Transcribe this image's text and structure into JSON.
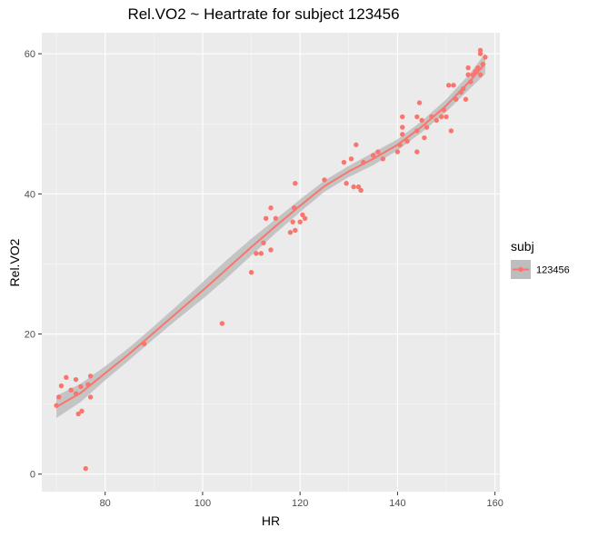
{
  "chart_data": {
    "type": "scatter",
    "title": "Rel.VO2 ~ Heartrate for subject 123456",
    "xlabel": "HR",
    "ylabel": "Rel.VO2",
    "xlim": [
      67,
      161
    ],
    "ylim": [
      -2.5,
      63
    ],
    "x_ticks": [
      80,
      100,
      120,
      140,
      160
    ],
    "y_ticks": [
      0,
      20,
      40,
      60
    ],
    "x_minor_ticks": [
      70,
      90,
      110,
      130,
      150
    ],
    "y_minor_ticks": [
      10,
      30,
      50
    ],
    "grid": true,
    "legend_position": "right",
    "legend": {
      "title": "subj",
      "entries": [
        {
          "label": "123456",
          "color": "#F8766D"
        }
      ]
    },
    "colors": {
      "point": "#F8766D",
      "smooth_line": "#F8766D",
      "ribbon": "#BDBDBD",
      "panel": "#EBEBEB",
      "grid": "#FFFFFF"
    },
    "series": [
      {
        "name": "123456",
        "points": [
          [
            70,
            9.8
          ],
          [
            70.5,
            11
          ],
          [
            71,
            12.6
          ],
          [
            72,
            13.8
          ],
          [
            73,
            12
          ],
          [
            74,
            13.5
          ],
          [
            74,
            11.5
          ],
          [
            74.5,
            8.6
          ],
          [
            75,
            12.5
          ],
          [
            75.2,
            9
          ],
          [
            76,
            0.8
          ],
          [
            76.5,
            12.8
          ],
          [
            77,
            11
          ],
          [
            77,
            14
          ],
          [
            88,
            18.6
          ],
          [
            104,
            21.5
          ],
          [
            110,
            28.8
          ],
          [
            111,
            31.5
          ],
          [
            112,
            31.5
          ],
          [
            112.5,
            33
          ],
          [
            113,
            36.5
          ],
          [
            114,
            32
          ],
          [
            114,
            38
          ],
          [
            115,
            36.5
          ],
          [
            118,
            34.5
          ],
          [
            118.5,
            36
          ],
          [
            118.8,
            38
          ],
          [
            119,
            41.5
          ],
          [
            119,
            34.8
          ],
          [
            120,
            36
          ],
          [
            120.5,
            37
          ],
          [
            121,
            36.5
          ],
          [
            125,
            42
          ],
          [
            129,
            44.5
          ],
          [
            129.5,
            41.5
          ],
          [
            130.5,
            45
          ],
          [
            131,
            41
          ],
          [
            131.5,
            47
          ],
          [
            132,
            41
          ],
          [
            132.5,
            40.5
          ],
          [
            133,
            44.5
          ],
          [
            135,
            45.5
          ],
          [
            136,
            46
          ],
          [
            137,
            45
          ],
          [
            140,
            46
          ],
          [
            140.5,
            47
          ],
          [
            141,
            48.5
          ],
          [
            141,
            49.5
          ],
          [
            141,
            51
          ],
          [
            142,
            47.5
          ],
          [
            144,
            46
          ],
          [
            144,
            49
          ],
          [
            144,
            51
          ],
          [
            144.5,
            53
          ],
          [
            145,
            50.5
          ],
          [
            145.5,
            48
          ],
          [
            146,
            49.5
          ],
          [
            147,
            51
          ],
          [
            148,
            50.5
          ],
          [
            149,
            51
          ],
          [
            149.5,
            52
          ],
          [
            150,
            51
          ],
          [
            150.5,
            55.5
          ],
          [
            151,
            49
          ],
          [
            151.5,
            55.5
          ],
          [
            152,
            53.5
          ],
          [
            153,
            54.5
          ],
          [
            153.5,
            55
          ],
          [
            154,
            53.5
          ],
          [
            154.5,
            57
          ],
          [
            154.5,
            58
          ],
          [
            155,
            56
          ],
          [
            155.5,
            57
          ],
          [
            156,
            57.5
          ],
          [
            156.5,
            58
          ],
          [
            157,
            60
          ],
          [
            157,
            57
          ],
          [
            157,
            60.5
          ],
          [
            157.5,
            58.5
          ],
          [
            158,
            59.5
          ]
        ],
        "smooth": {
          "x": [
            70,
            75,
            80,
            85,
            90,
            95,
            100,
            105,
            110,
            115,
            120,
            125,
            130,
            135,
            140,
            145,
            150,
            155,
            158
          ],
          "y": [
            9.6,
            11.6,
            14.4,
            17.2,
            20.2,
            23.2,
            26.2,
            29.3,
            32.4,
            35.4,
            38.3,
            41.1,
            43.2,
            45.0,
            47.0,
            49.6,
            52.6,
            56.2,
            58.6
          ],
          "se": [
            1.6,
            1.3,
            1.0,
            0.9,
            0.9,
            1.0,
            1.2,
            1.3,
            1.2,
            1.0,
            0.9,
            0.8,
            0.8,
            0.9,
            0.8,
            0.8,
            0.9,
            1.1,
            1.5
          ]
        }
      }
    ]
  }
}
